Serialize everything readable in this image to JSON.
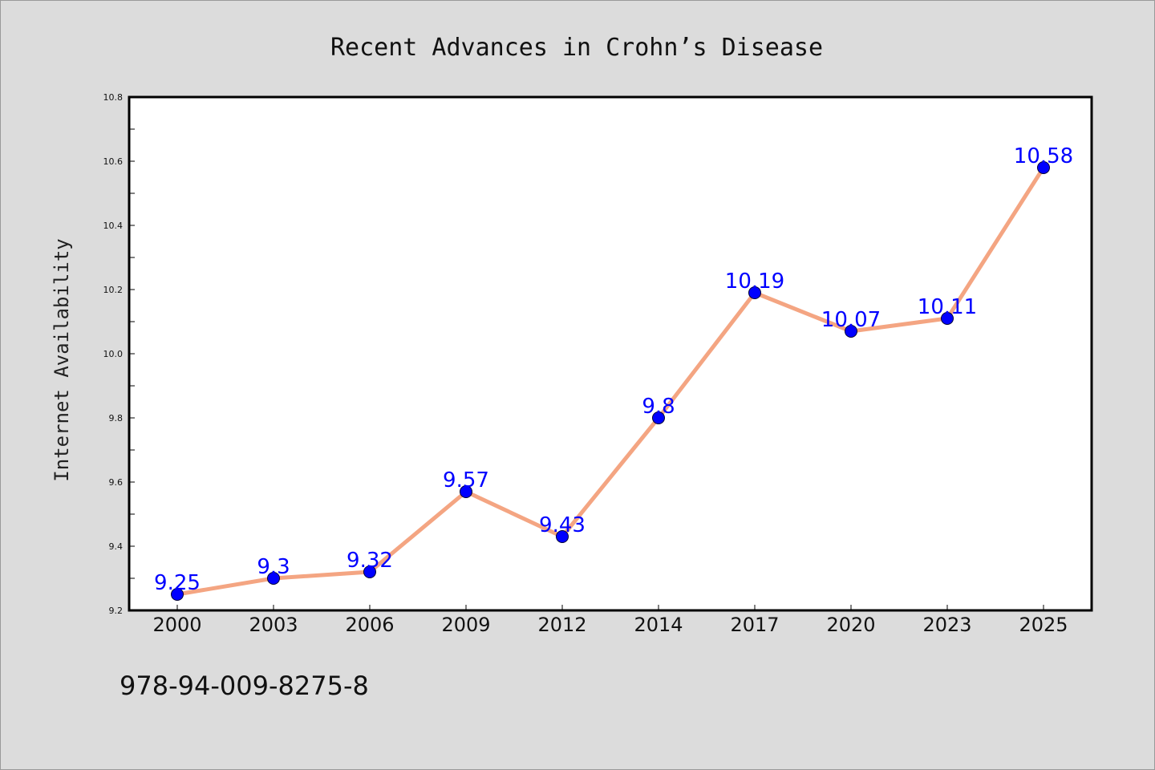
{
  "chart_data": {
    "type": "line",
    "title": "Recent Advances in Crohn’s Disease",
    "xlabel": "",
    "ylabel": "Internet Availability",
    "categories": [
      "2000",
      "2003",
      "2006",
      "2009",
      "2012",
      "2014",
      "2017",
      "2020",
      "2023",
      "2025"
    ],
    "series": [
      {
        "values": [
          9.25,
          9.3,
          9.32,
          9.57,
          9.43,
          9.8,
          10.19,
          10.07,
          10.11,
          10.58
        ],
        "data_labels": [
          "9.25",
          "9.3",
          "9.32",
          "9.57",
          "9.43",
          "9.8",
          "10.19",
          "10.07",
          "10.11",
          "10.58"
        ],
        "line_color": "#f4a582",
        "marker_color": "#0000ff",
        "label_color": "#0000ff"
      }
    ],
    "ylim": [
      9.2,
      10.8
    ],
    "yticks": [
      "9.2",
      "9.4",
      "9.6",
      "9.8",
      "10.0",
      "10.2",
      "10.4",
      "10.6",
      "10.8"
    ],
    "grid": false,
    "legend": "none",
    "background_color": "#dcdcdc",
    "plot_background_color": "#ffffff"
  },
  "footer": {
    "code": "978-94-009-8275-8"
  }
}
